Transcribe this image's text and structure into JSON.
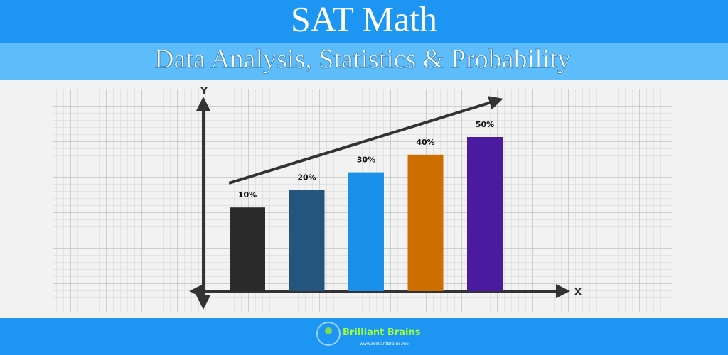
{
  "header": {
    "title": "SAT Math",
    "subtitle": "Data Analysis, Statistics & Probability"
  },
  "chart_data": {
    "type": "bar",
    "x_label": "X",
    "y_label": "Y",
    "categories": [
      null,
      null,
      null,
      null,
      null
    ],
    "values": [
      10,
      20,
      30,
      40,
      50
    ],
    "value_labels": [
      "10%",
      "20%",
      "30%",
      "40%",
      "50%"
    ],
    "colors": [
      "#2b2b2b",
      "#24557f",
      "#1a90e8",
      "#cc6e00",
      "#4a1aa0"
    ],
    "trend_arrow": true
  },
  "footer": {
    "brand": "Brilliant Brains",
    "url": "www.brilliantbrains.me"
  }
}
